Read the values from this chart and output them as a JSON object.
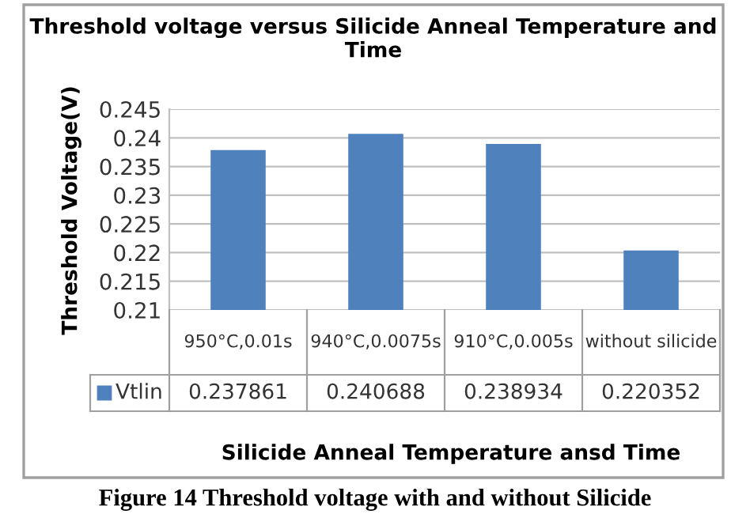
{
  "chart_data": {
    "type": "bar",
    "title": "Threshold voltage versus Silicide Anneal Temperature and Time",
    "xlabel": "Silicide Anneal Temperature ansd Time",
    "ylabel": "Threshold Voltage(V)",
    "categories": [
      "950°C,0.01s",
      "940°C,0.0075s",
      "910°C,0.005s",
      "without silicide"
    ],
    "series": [
      {
        "name": "Vtlin",
        "color": "#4f81bd",
        "values": [
          0.237861,
          0.240688,
          0.238934,
          0.220352
        ]
      }
    ],
    "ylim": [
      0.21,
      0.245
    ],
    "yticks": [
      0.21,
      0.215,
      0.22,
      0.225,
      0.23,
      0.235,
      0.24,
      0.245
    ],
    "grid": "y",
    "data_labels": true,
    "annotations": [
      "Figure 14 Threshold voltage with and without Silicide"
    ]
  }
}
